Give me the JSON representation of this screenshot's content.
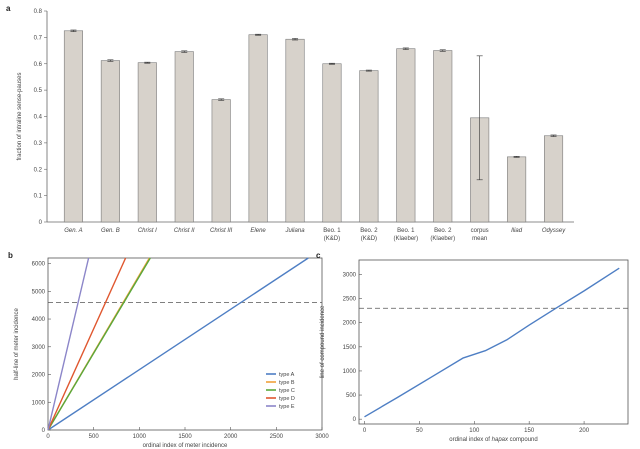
{
  "panels": {
    "a": {
      "letter": "a",
      "chart_data": {
        "type": "bar",
        "ylabel": "fraction of intraline sense-pauses",
        "ylim": [
          0,
          0.8
        ],
        "yticks": [
          0,
          0.1,
          0.2,
          0.3,
          0.4,
          0.5,
          0.6,
          0.7,
          0.8
        ],
        "categories": [
          {
            "line1": "Gen. A",
            "line2": "",
            "italic": true
          },
          {
            "line1": "Gen. B",
            "line2": "",
            "italic": true
          },
          {
            "line1": "Christ I",
            "line2": "",
            "italic": true
          },
          {
            "line1": "Christ II",
            "line2": "",
            "italic": true
          },
          {
            "line1": "Christ III",
            "line2": "",
            "italic": true
          },
          {
            "line1": "Elene",
            "line2": "",
            "italic": true
          },
          {
            "line1": "Juliana",
            "line2": "",
            "italic": true
          },
          {
            "line1": "Beo. 1",
            "line2": "(K&D)",
            "italic": false
          },
          {
            "line1": "Beo. 2",
            "line2": "(K&D)",
            "italic": false
          },
          {
            "line1": "Beo. 1",
            "line2": "(Klaeber)",
            "italic": false
          },
          {
            "line1": "Beo. 2",
            "line2": "(Klaeber)",
            "italic": false
          },
          {
            "line1": "corpus",
            "line2": "mean",
            "italic": false
          },
          {
            "line1": "Iliad",
            "line2": "",
            "italic": true
          },
          {
            "line1": "Odyssey",
            "line2": "",
            "italic": true
          }
        ],
        "values": [
          0.725,
          0.612,
          0.604,
          0.646,
          0.464,
          0.71,
          0.693,
          0.6,
          0.574,
          0.657,
          0.65,
          0.395,
          0.247,
          0.327
        ],
        "error": [
          0.003,
          0.003,
          0.002,
          0.003,
          0.003,
          0.002,
          0.003,
          0.002,
          0.002,
          0.003,
          0.003,
          0.235,
          0.002,
          0.003
        ],
        "bar_color": "#d7d2cb",
        "bar_edge": "#7a7a7a"
      }
    },
    "b": {
      "letter": "b",
      "chart_data": {
        "type": "line",
        "xlabel": "ordinal index of meter incidence",
        "ylabel": "half-line of meter incidence",
        "xlim": [
          0,
          3000
        ],
        "ylim": [
          0,
          6200
        ],
        "xticks": [
          0,
          500,
          1000,
          1500,
          2000,
          2500,
          3000
        ],
        "yticks": [
          0,
          1000,
          2000,
          3000,
          4000,
          5000,
          6000
        ],
        "hline": 4600,
        "series": [
          {
            "name": "type A",
            "color": "#4f7fc4",
            "x": [
              0,
              2850
            ],
            "y": [
              0,
              6200
            ]
          },
          {
            "name": "type B",
            "color": "#f0a23a",
            "x": [
              0,
              1110
            ],
            "y": [
              0,
              6200
            ]
          },
          {
            "name": "type C",
            "color": "#5aa83c",
            "x": [
              0,
              1120
            ],
            "y": [
              0,
              6200
            ]
          },
          {
            "name": "type D",
            "color": "#e0572f",
            "x": [
              0,
              850
            ],
            "y": [
              0,
              6200
            ]
          },
          {
            "name": "type E",
            "color": "#8c86c9",
            "x": [
              0,
              445
            ],
            "y": [
              0,
              6200
            ]
          }
        ],
        "legend_position": "bottom-right"
      }
    },
    "c": {
      "letter": "c",
      "chart_data": {
        "type": "line",
        "xlabel_prefix": "ordinal index of ",
        "xlabel_italic": "hapax",
        "xlabel_suffix": " compound",
        "ylabel": "line of compound incidence",
        "xlim": [
          -5,
          240
        ],
        "ylim": [
          -100,
          3300
        ],
        "xticks": [
          0,
          50,
          100,
          150,
          200
        ],
        "yticks": [
          0,
          500,
          1000,
          1500,
          2000,
          2500,
          3000
        ],
        "hline": 2300,
        "series": [
          {
            "color": "#4f7fc4",
            "x": [
              0,
              30,
              60,
              90,
              110,
              130,
              150,
              175,
              200,
              232
            ],
            "y": [
              50,
              450,
              860,
              1270,
              1420,
              1650,
              1950,
              2310,
              2660,
              3130
            ]
          }
        ]
      }
    }
  }
}
